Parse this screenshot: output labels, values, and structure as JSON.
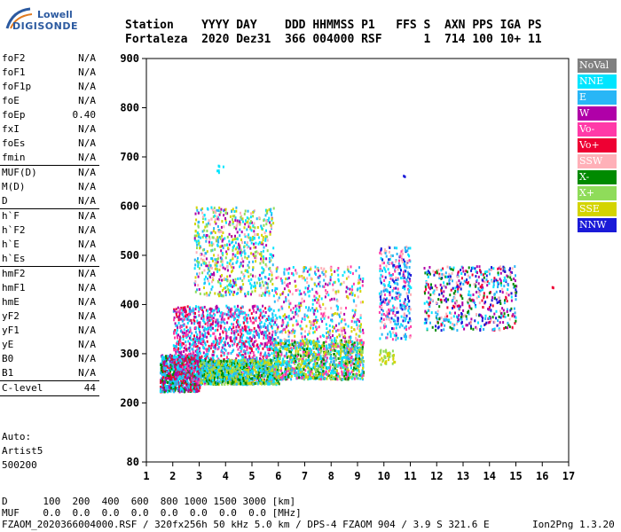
{
  "logo": {
    "line1": "Lowell",
    "line2": "DIGISONDE"
  },
  "header": {
    "line1": "Station    YYYY DAY    DDD HHMMSS P1   FFS S  AXN PPS IGA PS",
    "line2": "Fortaleza  2020 Dez31  366 004000 RSF      1  714 100 10+ 11"
  },
  "params": [
    {
      "name": "foF2",
      "value": "N/A"
    },
    {
      "name": "foF1",
      "value": "N/A"
    },
    {
      "name": "foF1p",
      "value": "N/A"
    },
    {
      "name": "foE",
      "value": "N/A"
    },
    {
      "name": "foEp",
      "value": "0.40"
    },
    {
      "name": "fxI",
      "value": "N/A"
    },
    {
      "name": "foEs",
      "value": "N/A"
    },
    {
      "name": "fmin",
      "value": "N/A",
      "sep": true
    },
    {
      "name": "MUF(D)",
      "value": "N/A"
    },
    {
      "name": "M(D)",
      "value": "N/A"
    },
    {
      "name": "D",
      "value": "N/A",
      "sep": true
    },
    {
      "name": "h`F",
      "value": "N/A"
    },
    {
      "name": "h`F2",
      "value": "N/A"
    },
    {
      "name": "h`E",
      "value": "N/A"
    },
    {
      "name": "h`Es",
      "value": "N/A",
      "sep": true
    },
    {
      "name": "hmF2",
      "value": "N/A"
    },
    {
      "name": "hmF1",
      "value": "N/A"
    },
    {
      "name": "hmE",
      "value": "N/A"
    },
    {
      "name": "yF2",
      "value": "N/A"
    },
    {
      "name": "yF1",
      "value": "N/A"
    },
    {
      "name": "yE",
      "value": "N/A"
    },
    {
      "name": "B0",
      "value": "N/A"
    },
    {
      "name": "B1",
      "value": "N/A",
      "sep": true
    },
    {
      "name": "C-level",
      "value": "44",
      "sep": true
    }
  ],
  "auto": {
    "line1": "Auto:",
    "line2": "Artist5",
    "line3": "500200"
  },
  "legend": [
    {
      "label": "NoVal",
      "color": "#808080"
    },
    {
      "label": "NNE",
      "color": "#00e5ff"
    },
    {
      "label": "E",
      "color": "#29b6f6"
    },
    {
      "label": "W",
      "color": "#b000a8"
    },
    {
      "label": "Vo-",
      "color": "#ff3aa8"
    },
    {
      "label": "Vo+",
      "color": "#ee0033"
    },
    {
      "label": "SSW",
      "color": "#ffb0b8"
    },
    {
      "label": "X-",
      "color": "#008a00"
    },
    {
      "label": "X+",
      "color": "#8fdc5a"
    },
    {
      "label": "SSE",
      "color": "#d4d400"
    },
    {
      "label": "NNW",
      "color": "#1a1ad8"
    }
  ],
  "chart_data": {
    "type": "scatter",
    "title": "",
    "xlabel": "",
    "ylabel": "",
    "xlim": [
      1,
      17
    ],
    "ylim": [
      80,
      900
    ],
    "x_ticks": [
      1,
      2,
      3,
      4,
      5,
      6,
      7,
      8,
      9,
      10,
      11,
      12,
      13,
      14,
      15,
      16,
      17
    ],
    "y_ticks": [
      80,
      200,
      300,
      400,
      500,
      600,
      700,
      800,
      900
    ],
    "grid": false,
    "clusters": [
      {
        "x": [
          1.5,
          3.0
        ],
        "y": [
          225,
          300
        ],
        "series": [
          "NNE",
          "E",
          "Vo+",
          "W",
          "X-"
        ],
        "density": 900
      },
      {
        "x": [
          2.0,
          5.8
        ],
        "y": [
          240,
          400
        ],
        "series": [
          "W",
          "Vo-",
          "Vo+",
          "E",
          "NNE"
        ],
        "density": 1400
      },
      {
        "x": [
          3.0,
          6.0
        ],
        "y": [
          240,
          290
        ],
        "series": [
          "E",
          "NNE",
          "SSE",
          "X+",
          "X-"
        ],
        "density": 1000
      },
      {
        "x": [
          2.8,
          5.8
        ],
        "y": [
          420,
          600
        ],
        "series": [
          "SSE",
          "NNE",
          "E",
          "SSW",
          "X+",
          "W"
        ],
        "density": 700
      },
      {
        "x": [
          5.8,
          9.2
        ],
        "y": [
          250,
          330
        ],
        "series": [
          "SSE",
          "X+",
          "NNE",
          "E",
          "X-",
          "Vo-"
        ],
        "density": 1200
      },
      {
        "x": [
          5.8,
          9.2
        ],
        "y": [
          330,
          480
        ],
        "series": [
          "NNE",
          "E",
          "Vo-",
          "W",
          "SSW",
          "SSE"
        ],
        "density": 500
      },
      {
        "x": [
          9.8,
          11.0
        ],
        "y": [
          330,
          520
        ],
        "series": [
          "NNE",
          "E",
          "NNW",
          "Vo-",
          "SSW"
        ],
        "density": 350
      },
      {
        "x": [
          11.5,
          15.0
        ],
        "y": [
          350,
          480
        ],
        "series": [
          "NNW",
          "Vo+",
          "W",
          "E",
          "NNE",
          "SSW",
          "X-"
        ],
        "density": 550
      },
      {
        "x": [
          9.8,
          10.4
        ],
        "y": [
          280,
          310
        ],
        "series": [
          "SSE",
          "X+"
        ],
        "density": 40
      },
      {
        "x": [
          16.3,
          16.4
        ],
        "y": [
          435,
          440
        ],
        "series": [
          "Vo+"
        ],
        "density": 2
      },
      {
        "x": [
          10.7,
          10.8
        ],
        "y": [
          660,
          665
        ],
        "series": [
          "NNW"
        ],
        "density": 2
      },
      {
        "x": [
          3.6,
          3.9
        ],
        "y": [
          670,
          685
        ],
        "series": [
          "NNE"
        ],
        "density": 6
      }
    ]
  },
  "bottom": {
    "line1": "D      100  200  400  600  800 1000 1500 3000 [km]",
    "line2": "MUF    0.0  0.0  0.0  0.0  0.0  0.0  0.0  0.0 [MHz]",
    "line3": "FZAOM_2020366004000.RSF / 320fx256h 50 kHz 5.0 km / DPS-4 FZAOM 904 / 3.9 S 321.6 E",
    "line4": "Ion2Png 1.3.20"
  }
}
